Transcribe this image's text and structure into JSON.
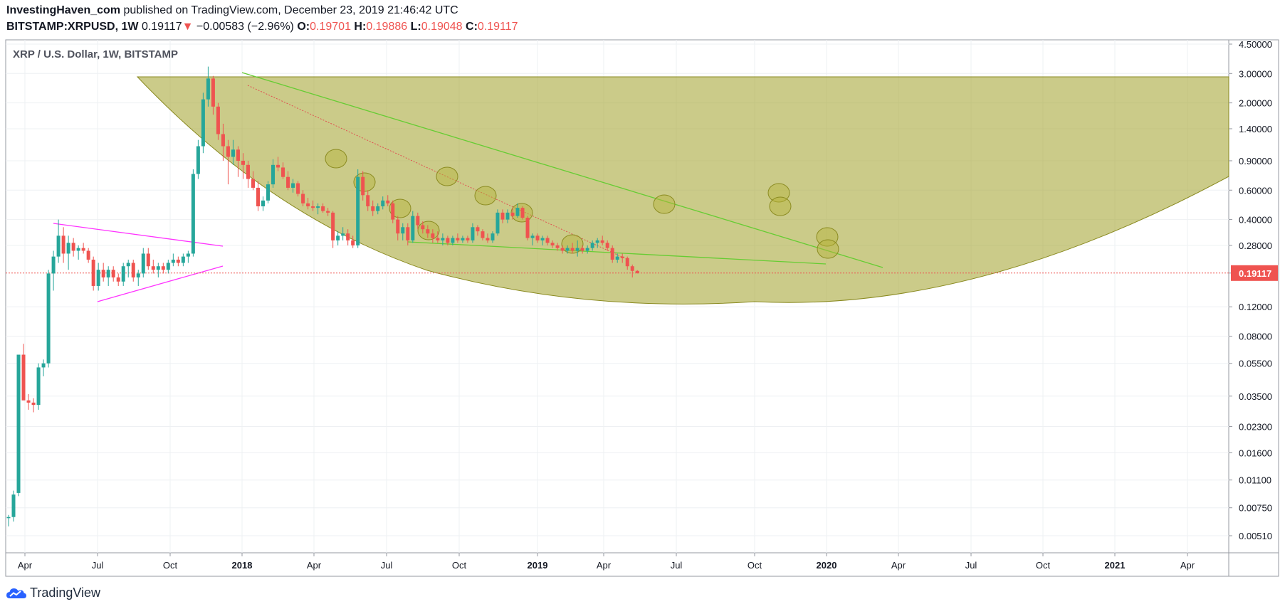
{
  "header": {
    "publisher": "InvestingHaven_com",
    "published_text": " published on TradingView.com, December 23, 2019 21:46:42 UTC",
    "symbol": "BITSTAMP:XRPUSD, 1W",
    "last": "0.19117",
    "change_arrow": "▼",
    "change": "−0.00583 (−2.96%)",
    "o_label": "O:",
    "o": "0.19701",
    "h_label": "H:",
    "h": "0.19886",
    "l_label": "L:",
    "l": "0.19048",
    "c_label": "C:",
    "c": "0.19117"
  },
  "brand": {
    "name": "TradingView",
    "logo_icon": "tradingview-cloud-icon"
  },
  "colors": {
    "up": "#26a69a",
    "down": "#ef5350",
    "cup_fill": "#a9a83a",
    "trend_green": "#66cc33",
    "triangle": "#ff33ff",
    "price_line": "#ef5350",
    "grid": "#eef0f3",
    "axis_text": "#131722"
  },
  "chart_data": {
    "type": "candlestick",
    "title": "XRP / U.S. Dollar, 1W, BITSTAMP",
    "scale": "log",
    "y_ticks": [
      "4.50000",
      "3.00000",
      "2.00000",
      "1.40000",
      "0.90000",
      "0.60000",
      "0.40000",
      "0.28000",
      "0.19117",
      "0.12000",
      "0.08000",
      "0.05500",
      "0.03500",
      "0.02300",
      "0.01600",
      "0.01100",
      "0.00750",
      "0.00510"
    ],
    "x_ticks": [
      "Apr",
      "Jul",
      "Oct",
      "2018",
      "Apr",
      "Jul",
      "Oct",
      "2019",
      "Apr",
      "Jul",
      "Oct",
      "2020",
      "Apr",
      "Jul",
      "Oct",
      "2021",
      "Apr"
    ],
    "bold_x_ticks": [
      "2018",
      "2019",
      "2020",
      "2021"
    ],
    "x_range": [
      "2017-03",
      "2021-06"
    ],
    "y_range": [
      0.0042,
      5.0
    ],
    "last_price": 0.19117,
    "last_price_label": "0.19117",
    "grid": true,
    "candles": [
      [
        0.0065,
        0.0068,
        0.0058,
        0.0066
      ],
      [
        0.0066,
        0.0095,
        0.0062,
        0.009
      ],
      [
        0.0092,
        0.06,
        0.0088,
        0.062
      ],
      [
        0.062,
        0.072,
        0.04,
        0.033
      ],
      [
        0.033,
        0.036,
        0.029,
        0.032
      ],
      [
        0.032,
        0.034,
        0.028,
        0.031
      ],
      [
        0.031,
        0.055,
        0.029,
        0.052
      ],
      [
        0.052,
        0.058,
        0.046,
        0.055
      ],
      [
        0.055,
        0.2,
        0.052,
        0.19
      ],
      [
        0.19,
        0.26,
        0.15,
        0.24
      ],
      [
        0.24,
        0.4,
        0.22,
        0.32
      ],
      [
        0.32,
        0.36,
        0.22,
        0.25
      ],
      [
        0.25,
        0.32,
        0.2,
        0.29
      ],
      [
        0.29,
        0.31,
        0.24,
        0.26
      ],
      [
        0.26,
        0.28,
        0.23,
        0.27
      ],
      [
        0.27,
        0.29,
        0.25,
        0.26
      ],
      [
        0.26,
        0.27,
        0.22,
        0.23
      ],
      [
        0.23,
        0.24,
        0.15,
        0.16
      ],
      [
        0.16,
        0.22,
        0.15,
        0.2
      ],
      [
        0.2,
        0.22,
        0.17,
        0.18
      ],
      [
        0.18,
        0.21,
        0.16,
        0.2
      ],
      [
        0.2,
        0.21,
        0.17,
        0.18
      ],
      [
        0.18,
        0.19,
        0.16,
        0.17
      ],
      [
        0.17,
        0.22,
        0.16,
        0.21
      ],
      [
        0.21,
        0.23,
        0.18,
        0.22
      ],
      [
        0.22,
        0.23,
        0.17,
        0.18
      ],
      [
        0.18,
        0.2,
        0.16,
        0.19
      ],
      [
        0.19,
        0.27,
        0.18,
        0.25
      ],
      [
        0.25,
        0.27,
        0.2,
        0.21
      ],
      [
        0.21,
        0.23,
        0.19,
        0.2
      ],
      [
        0.2,
        0.22,
        0.18,
        0.21
      ],
      [
        0.21,
        0.22,
        0.19,
        0.2
      ],
      [
        0.2,
        0.23,
        0.19,
        0.22
      ],
      [
        0.22,
        0.25,
        0.21,
        0.23
      ],
      [
        0.23,
        0.24,
        0.21,
        0.22
      ],
      [
        0.22,
        0.25,
        0.21,
        0.24
      ],
      [
        0.24,
        0.26,
        0.22,
        0.25
      ],
      [
        0.25,
        0.8,
        0.24,
        0.75
      ],
      [
        0.75,
        1.2,
        0.7,
        1.1
      ],
      [
        1.1,
        2.3,
        1.0,
        2.1
      ],
      [
        2.1,
        3.3,
        1.9,
        2.8
      ],
      [
        2.8,
        2.9,
        1.7,
        1.9
      ],
      [
        1.9,
        2.0,
        1.2,
        1.3
      ],
      [
        1.3,
        1.5,
        0.9,
        1.1
      ],
      [
        1.1,
        1.2,
        0.65,
        0.95
      ],
      [
        0.95,
        1.2,
        0.85,
        1.05
      ],
      [
        1.05,
        1.1,
        0.72,
        0.9
      ],
      [
        0.9,
        1.0,
        0.7,
        0.85
      ],
      [
        0.85,
        0.9,
        0.62,
        0.7
      ],
      [
        0.7,
        0.78,
        0.6,
        0.62
      ],
      [
        0.62,
        0.68,
        0.45,
        0.48
      ],
      [
        0.48,
        0.55,
        0.45,
        0.52
      ],
      [
        0.52,
        0.68,
        0.5,
        0.65
      ],
      [
        0.65,
        0.92,
        0.62,
        0.85
      ],
      [
        0.85,
        0.95,
        0.78,
        0.82
      ],
      [
        0.82,
        0.88,
        0.7,
        0.72
      ],
      [
        0.72,
        0.78,
        0.6,
        0.62
      ],
      [
        0.62,
        0.7,
        0.58,
        0.66
      ],
      [
        0.66,
        0.68,
        0.55,
        0.57
      ],
      [
        0.57,
        0.6,
        0.48,
        0.5
      ],
      [
        0.5,
        0.54,
        0.46,
        0.48
      ],
      [
        0.48,
        0.52,
        0.45,
        0.47
      ],
      [
        0.47,
        0.5,
        0.43,
        0.48
      ],
      [
        0.48,
        0.5,
        0.44,
        0.45
      ],
      [
        0.45,
        0.47,
        0.42,
        0.44
      ],
      [
        0.44,
        0.45,
        0.27,
        0.3
      ],
      [
        0.3,
        0.34,
        0.28,
        0.32
      ],
      [
        0.32,
        0.36,
        0.3,
        0.33
      ],
      [
        0.33,
        0.35,
        0.28,
        0.3
      ],
      [
        0.3,
        0.32,
        0.27,
        0.28
      ],
      [
        0.28,
        0.8,
        0.27,
        0.72
      ],
      [
        0.72,
        0.78,
        0.52,
        0.56
      ],
      [
        0.56,
        0.6,
        0.45,
        0.48
      ],
      [
        0.48,
        0.52,
        0.42,
        0.45
      ],
      [
        0.45,
        0.5,
        0.43,
        0.48
      ],
      [
        0.48,
        0.55,
        0.46,
        0.52
      ],
      [
        0.52,
        0.56,
        0.48,
        0.5
      ],
      [
        0.5,
        0.52,
        0.38,
        0.4
      ],
      [
        0.4,
        0.42,
        0.3,
        0.33
      ],
      [
        0.33,
        0.38,
        0.3,
        0.36
      ],
      [
        0.36,
        0.38,
        0.28,
        0.3
      ],
      [
        0.3,
        0.45,
        0.29,
        0.42
      ],
      [
        0.42,
        0.44,
        0.35,
        0.37
      ],
      [
        0.37,
        0.39,
        0.33,
        0.35
      ],
      [
        0.35,
        0.37,
        0.31,
        0.33
      ],
      [
        0.33,
        0.35,
        0.29,
        0.31
      ],
      [
        0.31,
        0.34,
        0.29,
        0.3
      ],
      [
        0.3,
        0.33,
        0.28,
        0.31
      ],
      [
        0.31,
        0.32,
        0.28,
        0.29
      ],
      [
        0.29,
        0.32,
        0.28,
        0.31
      ],
      [
        0.31,
        0.33,
        0.29,
        0.3
      ],
      [
        0.3,
        0.32,
        0.29,
        0.31
      ],
      [
        0.31,
        0.32,
        0.29,
        0.3
      ],
      [
        0.3,
        0.38,
        0.29,
        0.36
      ],
      [
        0.36,
        0.37,
        0.32,
        0.34
      ],
      [
        0.34,
        0.35,
        0.3,
        0.31
      ],
      [
        0.31,
        0.33,
        0.29,
        0.3
      ],
      [
        0.3,
        0.34,
        0.29,
        0.33
      ],
      [
        0.33,
        0.46,
        0.32,
        0.44
      ],
      [
        0.44,
        0.46,
        0.38,
        0.4
      ],
      [
        0.4,
        0.46,
        0.38,
        0.44
      ],
      [
        0.44,
        0.47,
        0.4,
        0.42
      ],
      [
        0.42,
        0.5,
        0.41,
        0.47
      ],
      [
        0.47,
        0.48,
        0.4,
        0.41
      ],
      [
        0.41,
        0.42,
        0.3,
        0.31
      ],
      [
        0.31,
        0.33,
        0.28,
        0.32
      ],
      [
        0.32,
        0.33,
        0.29,
        0.3
      ],
      [
        0.3,
        0.32,
        0.28,
        0.31
      ],
      [
        0.31,
        0.32,
        0.28,
        0.29
      ],
      [
        0.29,
        0.3,
        0.27,
        0.28
      ],
      [
        0.28,
        0.29,
        0.26,
        0.27
      ],
      [
        0.27,
        0.28,
        0.25,
        0.26
      ],
      [
        0.26,
        0.28,
        0.25,
        0.27
      ],
      [
        0.27,
        0.29,
        0.25,
        0.26
      ],
      [
        0.26,
        0.3,
        0.24,
        0.27
      ],
      [
        0.27,
        0.28,
        0.25,
        0.26
      ],
      [
        0.26,
        0.28,
        0.25,
        0.27
      ],
      [
        0.27,
        0.3,
        0.26,
        0.29
      ],
      [
        0.29,
        0.31,
        0.27,
        0.3
      ],
      [
        0.3,
        0.32,
        0.28,
        0.29
      ],
      [
        0.29,
        0.3,
        0.26,
        0.27
      ],
      [
        0.27,
        0.28,
        0.22,
        0.23
      ],
      [
        0.23,
        0.25,
        0.22,
        0.24
      ],
      [
        0.24,
        0.25,
        0.22,
        0.235
      ],
      [
        0.235,
        0.24,
        0.2,
        0.21
      ],
      [
        0.21,
        0.215,
        0.18,
        0.197
      ],
      [
        0.197,
        0.199,
        0.19,
        0.191
      ]
    ],
    "annotations": {
      "cup_shape": true,
      "upper_trendline": true,
      "lower_trendline": true,
      "dotted_trendline": true,
      "triangle_pattern": true,
      "highlight_circles": 13
    }
  }
}
